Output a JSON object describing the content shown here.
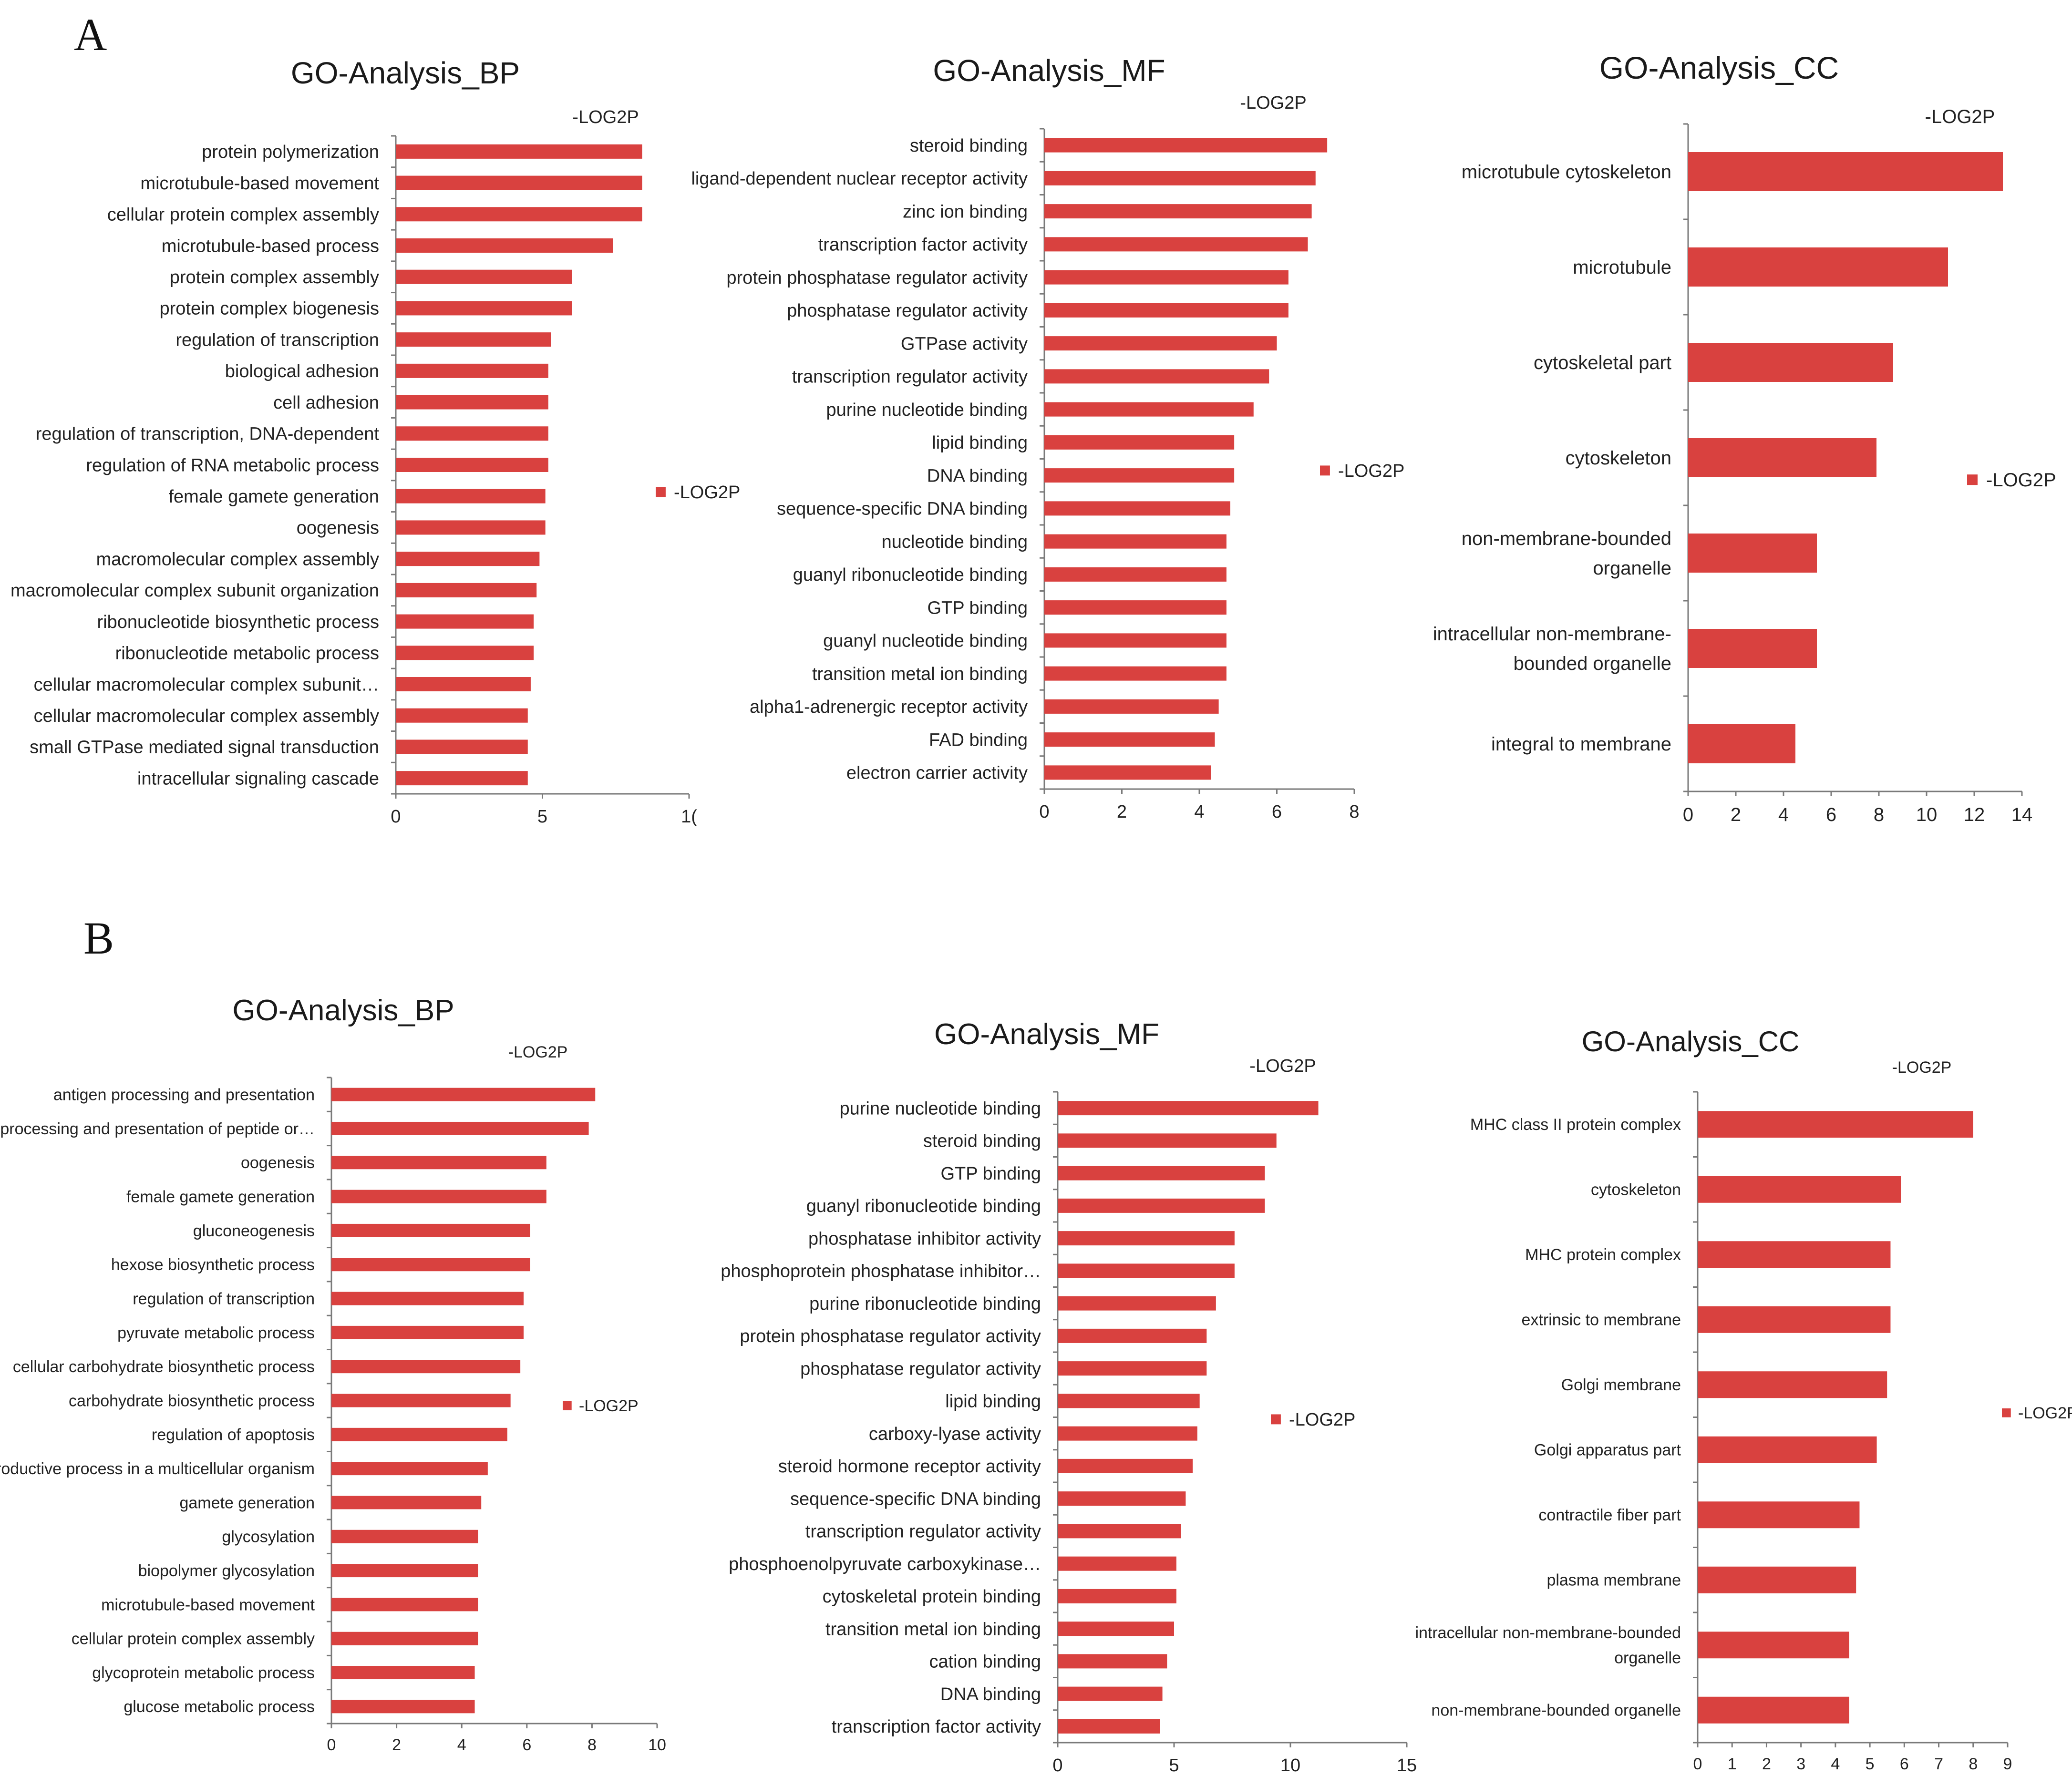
{
  "panels": [
    {
      "label": "A"
    },
    {
      "label": "B"
    }
  ],
  "colors": {
    "bar": "#d9413f",
    "axis": "#7a7a7a",
    "text": "#222222"
  },
  "chart_data": [
    {
      "type": "bar",
      "orientation": "horizontal",
      "panel": "A",
      "title": "GO-Analysis_BP",
      "series_label": "-LOG2P",
      "legend": "-LOG2P",
      "categories": [
        "protein polymerization",
        "microtubule-based movement",
        "cellular protein complex assembly",
        "microtubule-based process",
        "protein complex assembly",
        "protein complex biogenesis",
        "regulation of transcription",
        "biological adhesion",
        "cell adhesion",
        "regulation of transcription, DNA-dependent",
        "regulation of RNA metabolic process",
        "female gamete generation",
        "oogenesis",
        "macromolecular complex assembly",
        "macromolecular complex subunit organization",
        "ribonucleotide biosynthetic process",
        "ribonucleotide metabolic process",
        "cellular macromolecular complex subunit…",
        "cellular macromolecular complex assembly",
        "small GTPase mediated signal transduction",
        "intracellular signaling cascade"
      ],
      "values": [
        8.4,
        8.4,
        8.4,
        7.4,
        6.0,
        6.0,
        5.3,
        5.2,
        5.2,
        5.2,
        5.2,
        5.1,
        5.1,
        4.9,
        4.8,
        4.7,
        4.7,
        4.6,
        4.5,
        4.5,
        4.5
      ],
      "xlim": [
        0,
        10
      ],
      "ticks": [
        "0",
        "5",
        "1("
      ]
    },
    {
      "type": "bar",
      "orientation": "horizontal",
      "panel": "A",
      "title": "GO-Analysis_MF",
      "series_label": "-LOG2P",
      "legend": "-LOG2P",
      "categories": [
        "steroid binding",
        "ligand-dependent nuclear receptor activity",
        "zinc ion binding",
        "transcription factor activity",
        "protein phosphatase regulator activity",
        "phosphatase regulator activity",
        "GTPase activity",
        "transcription regulator activity",
        "purine nucleotide binding",
        "lipid binding",
        "DNA binding",
        "sequence-specific DNA binding",
        "nucleotide binding",
        "guanyl ribonucleotide binding",
        "GTP binding",
        "guanyl nucleotide binding",
        "transition metal ion binding",
        "alpha1-adrenergic receptor activity",
        "FAD binding",
        "electron carrier activity"
      ],
      "values": [
        7.3,
        7.0,
        6.9,
        6.8,
        6.3,
        6.3,
        6.0,
        5.8,
        5.4,
        4.9,
        4.9,
        4.8,
        4.7,
        4.7,
        4.7,
        4.7,
        4.7,
        4.5,
        4.4,
        4.3
      ],
      "xlim": [
        0,
        8
      ],
      "ticks": [
        "0",
        "2",
        "4",
        "6",
        "8"
      ]
    },
    {
      "type": "bar",
      "orientation": "horizontal",
      "panel": "A",
      "title": "GO-Analysis_CC",
      "series_label": "-LOG2P",
      "legend": "-LOG2P",
      "categories": [
        "microtubule cytoskeleton",
        "microtubule",
        "cytoskeletal part",
        "cytoskeleton",
        "non-membrane-bounded organelle",
        "intracellular non-membrane-bounded organelle",
        "integral to membrane"
      ],
      "category_lines": [
        [
          "microtubule cytoskeleton"
        ],
        [
          "microtubule"
        ],
        [
          "cytoskeletal part"
        ],
        [
          "cytoskeleton"
        ],
        [
          "non-membrane-bounded",
          "organelle"
        ],
        [
          "intracellular non-membrane-",
          "bounded organelle"
        ],
        [
          "integral to membrane"
        ]
      ],
      "values": [
        13.2,
        10.9,
        8.6,
        7.9,
        5.4,
        5.4,
        4.5
      ],
      "xlim": [
        0,
        14
      ],
      "ticks": [
        "0",
        "2",
        "4",
        "6",
        "8",
        "10",
        "12",
        "14"
      ]
    },
    {
      "type": "bar",
      "orientation": "horizontal",
      "panel": "B",
      "title": "GO-Analysis_BP",
      "series_label": "-LOG2P",
      "legend": "-LOG2P",
      "categories": [
        "antigen processing and presentation",
        "antigen processing and presentation of peptide or…",
        "oogenesis",
        "female gamete generation",
        "gluconeogenesis",
        "hexose biosynthetic process",
        "regulation of transcription",
        "pyruvate metabolic process",
        "cellular carbohydrate biosynthetic process",
        "carbohydrate biosynthetic process",
        "regulation of apoptosis",
        "reproductive process in a multicellular organism",
        "gamete generation",
        "glycosylation",
        "biopolymer glycosylation",
        "microtubule-based movement",
        "cellular protein complex assembly",
        "glycoprotein metabolic process",
        "glucose metabolic process"
      ],
      "values": [
        8.1,
        7.9,
        6.6,
        6.6,
        6.1,
        6.1,
        5.9,
        5.9,
        5.8,
        5.5,
        5.4,
        4.8,
        4.6,
        4.5,
        4.5,
        4.5,
        4.5,
        4.4,
        4.4
      ],
      "xlim": [
        0,
        10
      ],
      "ticks": [
        "0",
        "2",
        "4",
        "6",
        "8",
        "10"
      ]
    },
    {
      "type": "bar",
      "orientation": "horizontal",
      "panel": "B",
      "title": "GO-Analysis_MF",
      "series_label": "-LOG2P",
      "legend": "-LOG2P",
      "categories": [
        "purine nucleotide binding",
        "steroid binding",
        "GTP binding",
        "guanyl ribonucleotide binding",
        "phosphatase inhibitor activity",
        "phosphoprotein phosphatase inhibitor…",
        "purine ribonucleotide binding",
        "protein phosphatase regulator activity",
        "phosphatase regulator activity",
        "lipid binding",
        "carboxy-lyase activity",
        "steroid hormone receptor activity",
        "sequence-specific DNA binding",
        "transcription regulator activity",
        "phosphoenolpyruvate carboxykinase…",
        "cytoskeletal protein binding",
        "transition metal ion binding",
        "cation binding",
        "DNA binding",
        "transcription factor activity"
      ],
      "values": [
        11.2,
        9.4,
        8.9,
        8.9,
        7.6,
        7.6,
        6.8,
        6.4,
        6.4,
        6.1,
        6.0,
        5.8,
        5.5,
        5.3,
        5.1,
        5.1,
        5.0,
        4.7,
        4.5,
        4.4
      ],
      "xlim": [
        0,
        15
      ],
      "ticks": [
        "0",
        "5",
        "10",
        "15"
      ]
    },
    {
      "type": "bar",
      "orientation": "horizontal",
      "panel": "B",
      "title": "GO-Analysis_CC",
      "series_label": "-LOG2P",
      "legend": "-LOG2P",
      "categories": [
        "MHC class II protein complex",
        "cytoskeleton",
        "MHC protein complex",
        "extrinsic to membrane",
        "Golgi membrane",
        "Golgi apparatus part",
        "contractile fiber part",
        "plasma membrane",
        "intracellular non-membrane-bounded organelle",
        "non-membrane-bounded organelle"
      ],
      "category_lines": [
        [
          "MHC class II protein complex"
        ],
        [
          "cytoskeleton"
        ],
        [
          "MHC protein complex"
        ],
        [
          "extrinsic to membrane"
        ],
        [
          "Golgi membrane"
        ],
        [
          "Golgi apparatus part"
        ],
        [
          "contractile fiber part"
        ],
        [
          "plasma membrane"
        ],
        [
          "intracellular non-membrane-bounded",
          "organelle"
        ],
        [
          "non-membrane-bounded organelle"
        ]
      ],
      "values": [
        8.0,
        5.9,
        5.6,
        5.6,
        5.5,
        5.2,
        4.7,
        4.6,
        4.4,
        4.4
      ],
      "xlim": [
        0,
        9
      ],
      "ticks": [
        "0",
        "1",
        "2",
        "3",
        "4",
        "5",
        "6",
        "7",
        "8",
        "9"
      ]
    }
  ]
}
